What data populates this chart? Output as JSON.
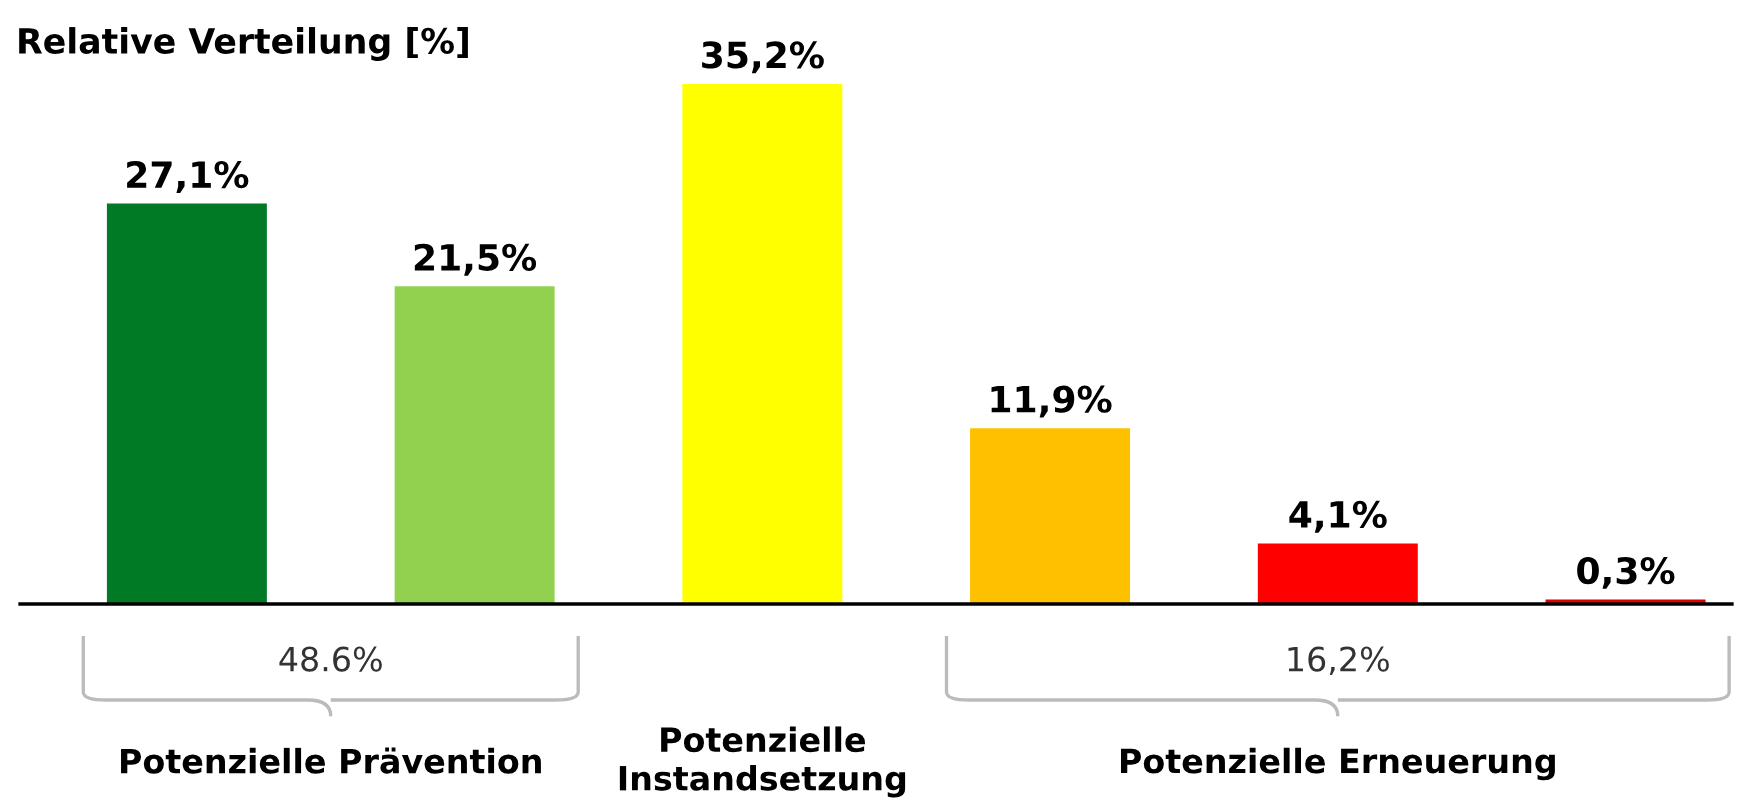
{
  "chart_data": {
    "type": "bar",
    "title": "Relative Verteilung [%]",
    "categories": [
      null,
      null,
      null,
      null,
      null,
      null
    ],
    "values": [
      27.1,
      21.5,
      35.2,
      11.9,
      4.1,
      0.3
    ],
    "colors": [
      "#007a25",
      "#92d050",
      "#ffff00",
      "#ffc000",
      "#ff0000",
      "#e00000"
    ],
    "value_labels": [
      "27,1%",
      "21,5%",
      "35,2%",
      "11,9%",
      "4,1%",
      "0,3%"
    ],
    "annotations": [
      "48.6%",
      "16,2%",
      "Potenzielle Prävention",
      "Potenzielle\nInstandsetzung",
      "Potenzielle Erneuerung"
    ],
    "grid": false,
    "legend": false
  }
}
